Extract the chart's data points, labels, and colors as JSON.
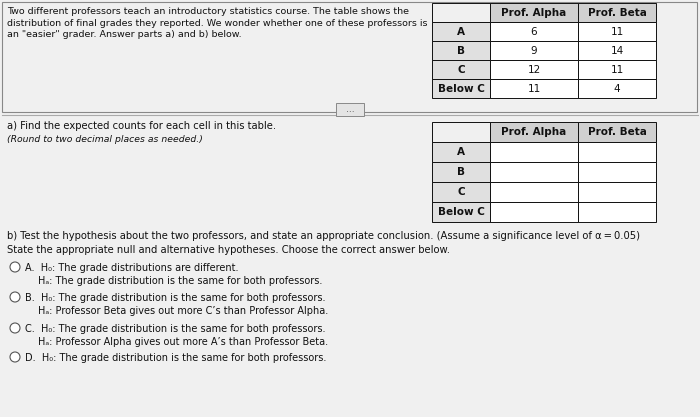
{
  "title_text": "Two different professors teach an introductory statistics course. The table shows the\ndistribution of final grades they reported. We wonder whether one of these professors is\nan \"easier\" grader. Answer parts a) and b) below.",
  "top_table_headers": [
    "",
    "Prof. Alpha",
    "Prof. Beta"
  ],
  "top_table_rows": [
    [
      "A",
      "6",
      "11"
    ],
    [
      "B",
      "9",
      "14"
    ],
    [
      "C",
      "12",
      "11"
    ],
    [
      "Below C",
      "11",
      "4"
    ]
  ],
  "part_a_label": "a) Find the expected counts for each cell in this table.",
  "part_a_sub": "(Round to two decimal places as needed.)",
  "bottom_table_headers": [
    "",
    "Prof. Alpha",
    "Prof. Beta"
  ],
  "bottom_table_rows": [
    [
      "A",
      "",
      ""
    ],
    [
      "B",
      "",
      ""
    ],
    [
      "C",
      "",
      ""
    ],
    [
      "Below C",
      "",
      ""
    ]
  ],
  "part_b_label": "b) Test the hypothesis about the two professors, and state an appropriate conclusion. (Assume a significance level of α = 0.05)",
  "state_label": "State the appropriate null and alternative hypotheses. Choose the correct answer below.",
  "choices": [
    {
      "letter": "A.",
      "h0": "H₀: The grade distributions are different.",
      "ha": "Hₐ: The grade distribution is the same for both professors."
    },
    {
      "letter": "B.",
      "h0": "H₀: The grade distribution is the same for both professors.",
      "ha": "Hₐ: Professor Beta gives out more C’s than Professor Alpha."
    },
    {
      "letter": "C.",
      "h0": "H₀: The grade distribution is the same for both professors.",
      "ha": "Hₐ: Professor Alpha gives out more A’s than Professor Beta."
    },
    {
      "letter": "D.",
      "h0": "H₀: The grade distribution is the same for both professors.",
      "ha": ""
    }
  ],
  "bg_color": "#f0f0f0",
  "text_color": "#111111",
  "top_box_bg": "#f0f0f0",
  "table_header_bg": "#d0d0d0",
  "table_row_label_bg": "#e0e0e0",
  "table_cell_bg": "#ffffff",
  "font_size_title": 6.8,
  "font_size_table": 7.5,
  "font_size_body": 7.2,
  "font_size_choices": 7.0
}
